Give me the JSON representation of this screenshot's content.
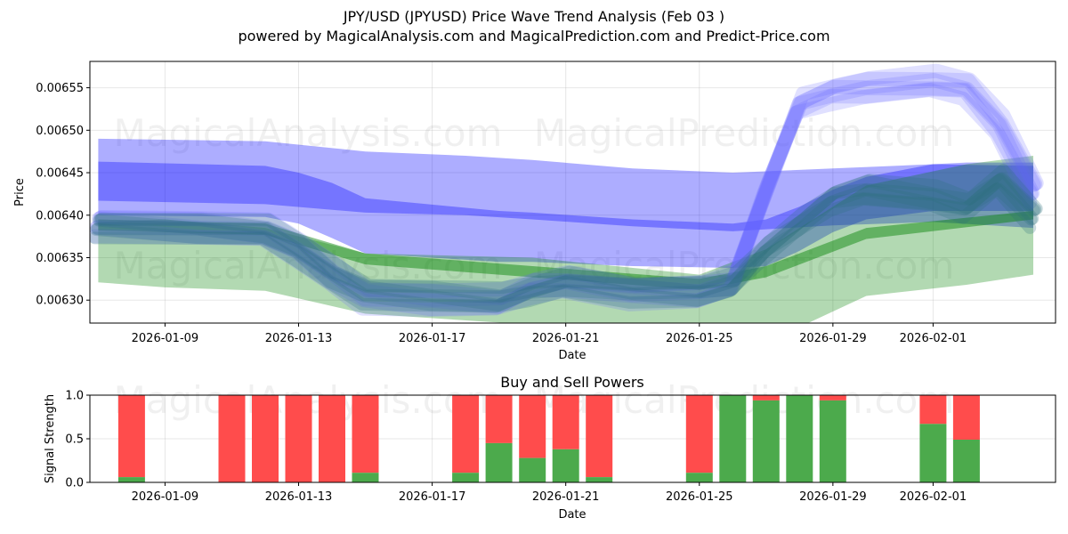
{
  "header": {
    "title": "JPY/USD (JPYUSD) Price Wave Trend Analysis (Feb 03 )",
    "subtitle": "powered by MagicalAnalysis.com and MagicalPrediction.com and Predict-Price.com"
  },
  "watermarks": [
    "MagicalAnalysis.com",
    "MagicalPrediction.com"
  ],
  "chart_data": [
    {
      "type": "area",
      "title": "",
      "xlabel": "Date",
      "ylabel": "Price",
      "xlim": [
        "2026-01-06T18:00",
        "2026-02-04T16:00"
      ],
      "ylim": [
        0.006273,
        0.006581
      ],
      "grid": true,
      "xticks": [
        "2026-01-09",
        "2026-01-13",
        "2026-01-17",
        "2026-01-21",
        "2026-01-25",
        "2026-01-29",
        "2026-02-01"
      ],
      "yticks": [
        0.0063,
        0.00635,
        0.0064,
        0.00645,
        0.0065,
        0.00655
      ],
      "ytick_labels": [
        "0.00630",
        "0.00635",
        "0.00640",
        "0.00645",
        "0.00650",
        "0.00655"
      ],
      "bands": [
        {
          "name": "blue-upper-band",
          "color": "#0000ff",
          "opacity": 0.32,
          "x": [
            "2026-01-07",
            "2026-01-12",
            "2026-01-15",
            "2026-01-18",
            "2026-01-20",
            "2026-01-23",
            "2026-01-26",
            "2026-01-29",
            "2026-02-01",
            "2026-02-04"
          ],
          "upper": [
            0.00649,
            0.006487,
            0.006475,
            0.00647,
            0.006465,
            0.006455,
            0.00645,
            0.006455,
            0.00646,
            0.006458
          ],
          "lower": [
            0.006417,
            0.006413,
            0.006403,
            0.0064,
            0.006395,
            0.006387,
            0.006381,
            0.006388,
            0.006392,
            0.006385
          ]
        },
        {
          "name": "blue-trend-band",
          "color": "#0000ff",
          "opacity": 0.32,
          "x": [
            "2026-01-07",
            "2026-01-12",
            "2026-01-13",
            "2026-01-14",
            "2026-01-15",
            "2026-01-19",
            "2026-01-20",
            "2026-01-23",
            "2026-01-26",
            "2026-01-27",
            "2026-01-28",
            "2026-01-29",
            "2026-01-30",
            "2026-02-01",
            "2026-02-02",
            "2026-02-04"
          ],
          "upper": [
            0.006463,
            0.006458,
            0.00645,
            0.006438,
            0.00642,
            0.006405,
            0.006403,
            0.006395,
            0.00639,
            0.006395,
            0.00641,
            0.00643,
            0.006445,
            0.00646,
            0.006462,
            0.006462
          ],
          "lower": [
            0.0064,
            0.006398,
            0.00639,
            0.006373,
            0.006355,
            0.006345,
            0.006345,
            0.00634,
            0.006338,
            0.00634,
            0.006358,
            0.00638,
            0.006395,
            0.006405,
            0.006405,
            0.006405
          ]
        },
        {
          "name": "green-wide-band",
          "color": "#008000",
          "opacity": 0.3,
          "x": [
            "2026-01-07",
            "2026-01-09",
            "2026-01-12",
            "2026-01-15",
            "2026-01-20",
            "2026-01-25",
            "2026-01-27",
            "2026-01-30",
            "2026-02-02",
            "2026-02-04"
          ],
          "upper": [
            0.006392,
            0.006395,
            0.006385,
            0.006355,
            0.00635,
            0.00633,
            0.00636,
            0.006435,
            0.00646,
            0.00647
          ],
          "lower": [
            0.006321,
            0.006315,
            0.006311,
            0.006284,
            0.006271,
            0.00625,
            0.00625,
            0.006305,
            0.006318,
            0.00633
          ]
        },
        {
          "name": "green-trend-band",
          "color": "#008000",
          "opacity": 0.45,
          "x": [
            "2026-01-07",
            "2026-01-12",
            "2026-01-15",
            "2026-01-20",
            "2026-01-25",
            "2026-01-27",
            "2026-01-30",
            "2026-02-04"
          ],
          "upper": [
            0.006395,
            0.00639,
            0.006355,
            0.00634,
            0.006325,
            0.00634,
            0.006385,
            0.006405
          ],
          "lower": [
            0.006382,
            0.006377,
            0.006342,
            0.006327,
            0.006312,
            0.006327,
            0.006372,
            0.006395
          ]
        }
      ],
      "wave_lines": [
        {
          "name": "wave-blue",
          "color": "#6666ff",
          "opacity": 0.2,
          "width": 16,
          "count": 6,
          "x": [
            "2026-01-07",
            "2026-01-10",
            "2026-01-12",
            "2026-01-13",
            "2026-01-14",
            "2026-01-15",
            "2026-01-17",
            "2026-01-19",
            "2026-01-20",
            "2026-01-21",
            "2026-01-23",
            "2026-01-25",
            "2026-01-26",
            "2026-01-27",
            "2026-01-28",
            "2026-01-29",
            "2026-01-30",
            "2026-02-01",
            "2026-02-02",
            "2026-02-03",
            "2026-02-04"
          ],
          "y": [
            0.00639,
            0.006385,
            0.00638,
            0.00636,
            0.00633,
            0.006305,
            0.0063,
            0.006298,
            0.006315,
            0.00632,
            0.00631,
            0.00631,
            0.00632,
            0.00643,
            0.00653,
            0.006545,
            0.00655,
            0.006555,
            0.00655,
            0.006505,
            0.00643
          ]
        },
        {
          "name": "wave-teal",
          "color": "#2a6f7a",
          "opacity": 0.25,
          "width": 14,
          "count": 6,
          "x": [
            "2026-01-07",
            "2026-01-10",
            "2026-01-12",
            "2026-01-13",
            "2026-01-14",
            "2026-01-15",
            "2026-01-17",
            "2026-01-19",
            "2026-01-20",
            "2026-01-21",
            "2026-01-23",
            "2026-01-25",
            "2026-01-26",
            "2026-01-27",
            "2026-01-28",
            "2026-01-29",
            "2026-01-30",
            "2026-02-01",
            "2026-02-02",
            "2026-02-03",
            "2026-02-04"
          ],
          "y": [
            0.006388,
            0.006384,
            0.00638,
            0.00636,
            0.00633,
            0.00631,
            0.006305,
            0.0063,
            0.006312,
            0.00632,
            0.006312,
            0.00631,
            0.006318,
            0.00636,
            0.00639,
            0.00642,
            0.00643,
            0.00642,
            0.00641,
            0.00644,
            0.0064
          ]
        }
      ]
    },
    {
      "type": "bar",
      "title": "Buy and Sell Powers",
      "xlabel": "Date",
      "ylabel": "Signal Strength",
      "ylim": [
        0,
        1
      ],
      "grid": true,
      "xticks": [
        "2026-01-09",
        "2026-01-13",
        "2026-01-17",
        "2026-01-21",
        "2026-01-25",
        "2026-01-29",
        "2026-02-01"
      ],
      "yticks": [
        0,
        0.5,
        1
      ],
      "ytick_labels": [
        "0.0",
        "0.5",
        "1.0"
      ],
      "buy_color": "#4caa4c",
      "sell_color": "#ff4c4c",
      "dates": [
        "2026-01-08",
        "2026-01-11",
        "2026-01-12",
        "2026-01-13",
        "2026-01-14",
        "2026-01-15",
        "2026-01-18",
        "2026-01-19",
        "2026-01-20",
        "2026-01-21",
        "2026-01-22",
        "2026-01-25",
        "2026-01-26",
        "2026-01-27",
        "2026-01-28",
        "2026-01-29",
        "2026-02-01",
        "2026-02-02"
      ],
      "buy": [
        0.06,
        0.0,
        0.0,
        0.0,
        0.0,
        0.11,
        0.11,
        0.45,
        0.28,
        0.38,
        0.06,
        0.11,
        1.0,
        0.94,
        1.0,
        0.94,
        0.67,
        0.49
      ]
    }
  ]
}
